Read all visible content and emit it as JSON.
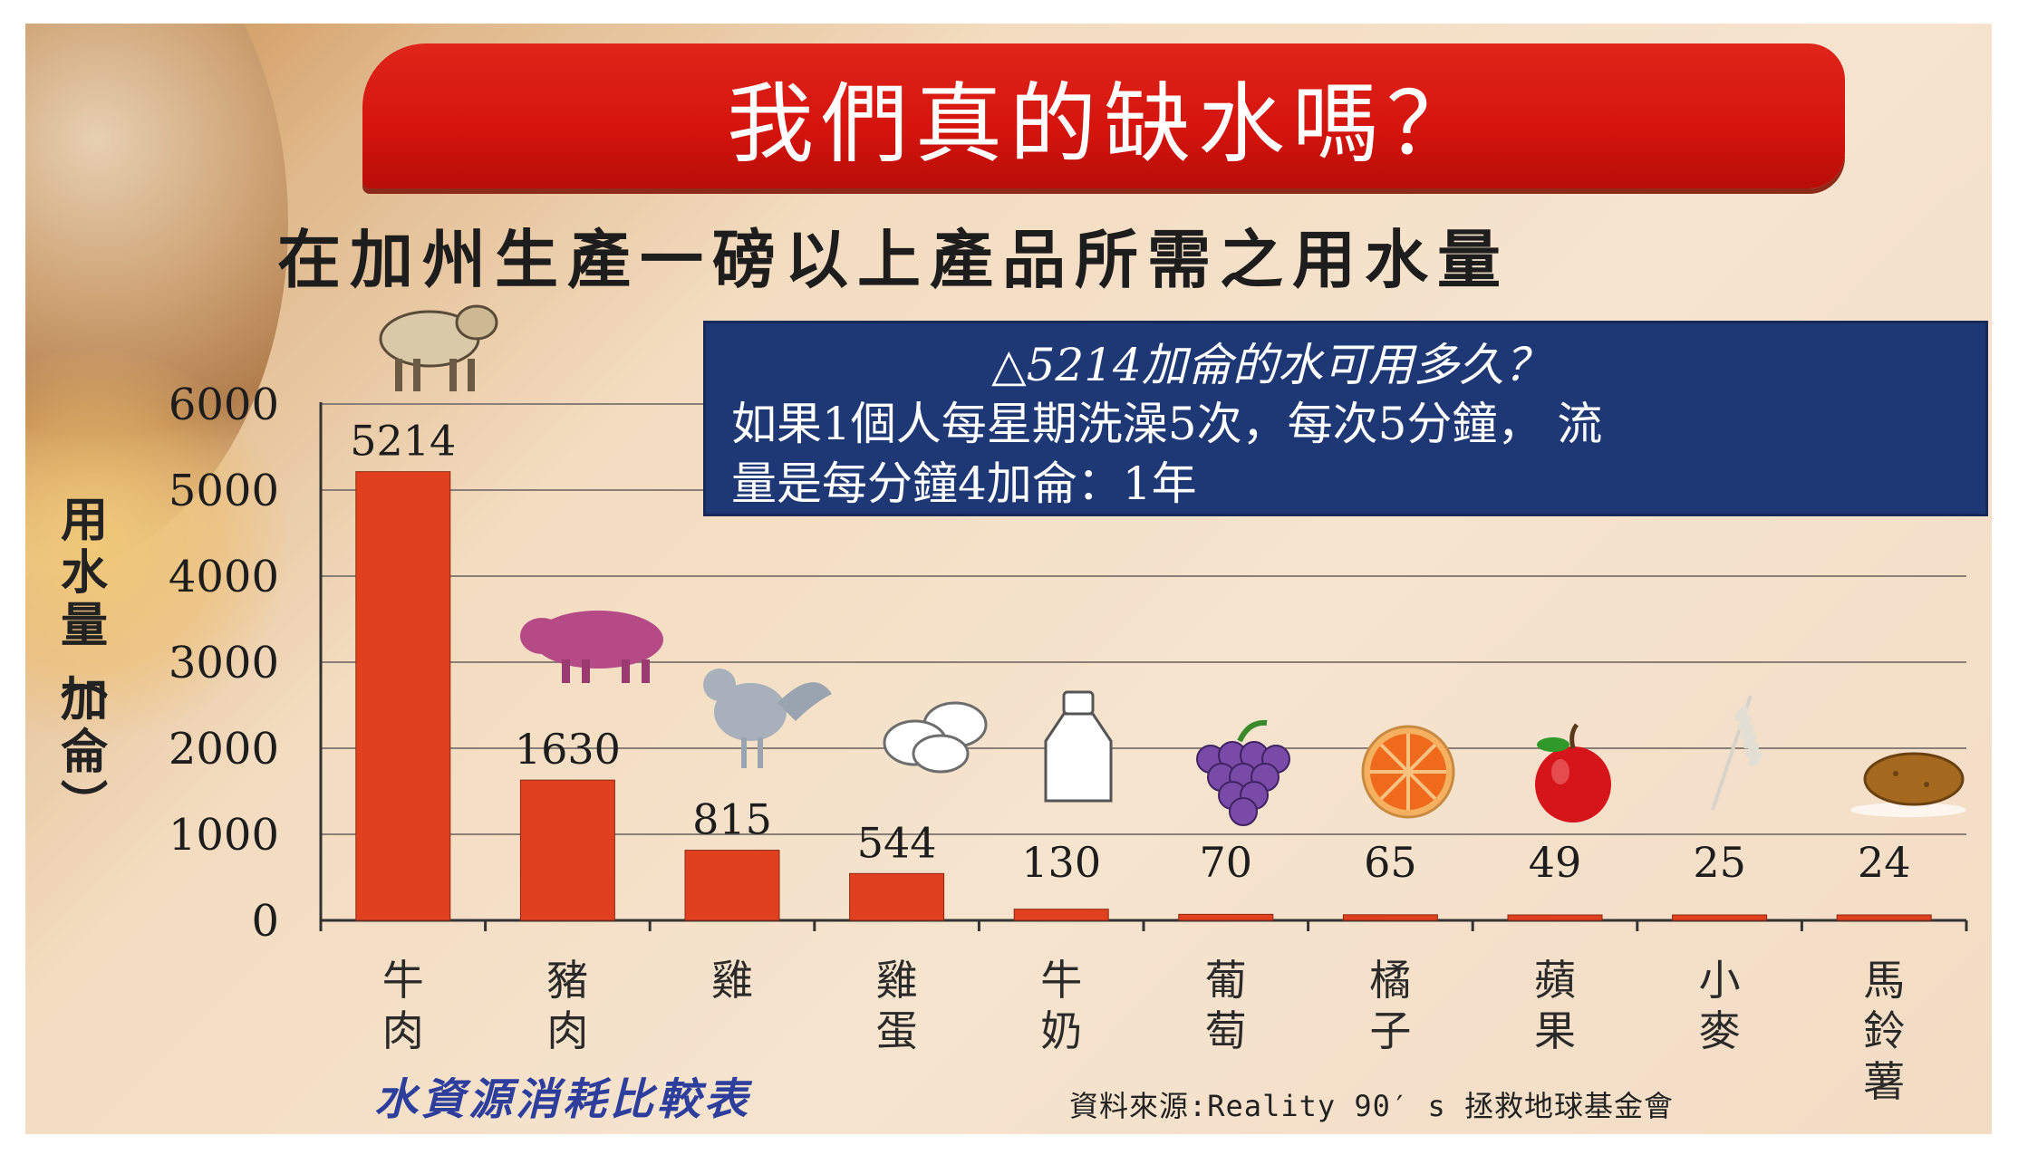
{
  "title": "我們真的缺水嗎？",
  "subtitle": "在加州生產一磅以上產品所需之用水量",
  "info_box": {
    "question": "△5214加侖的水可用多久？",
    "line1": "如果1個人每星期洗澡5次，每次5分鐘， 流",
    "line2": "量是每分鐘4加侖：1年"
  },
  "footer_left": "水資源消耗比較表",
  "footer_right": "資料來源:Reality 90′ s 拯救地球基金會",
  "colors": {
    "bar": "#e0401e",
    "title_banner": "#d4140d",
    "info_bg": "#1e3775",
    "footer_blue": "#2e3e9c"
  },
  "chart_data": {
    "type": "bar",
    "title": "在加州生產一磅以上產品所需之用水量",
    "ylabel": "用水量(加侖)",
    "xlabel": "",
    "ylim": [
      0,
      6000
    ],
    "yticks": [
      0,
      1000,
      2000,
      3000,
      4000,
      5000,
      6000
    ],
    "grid": true,
    "categories": [
      "牛肉",
      "豬肉",
      "雞",
      "雞蛋",
      "牛奶",
      "葡萄",
      "橘子",
      "蘋果",
      "小麥",
      "馬鈴薯"
    ],
    "values": [
      5214,
      1630,
      815,
      544,
      130,
      70,
      65,
      49,
      25,
      24
    ],
    "icons": [
      "cow-icon",
      "pig-icon",
      "rooster-icon",
      "eggs-icon",
      "milk-bottle-icon",
      "grapes-icon",
      "orange-icon",
      "apple-icon",
      "wheat-icon",
      "potato-icon"
    ]
  }
}
